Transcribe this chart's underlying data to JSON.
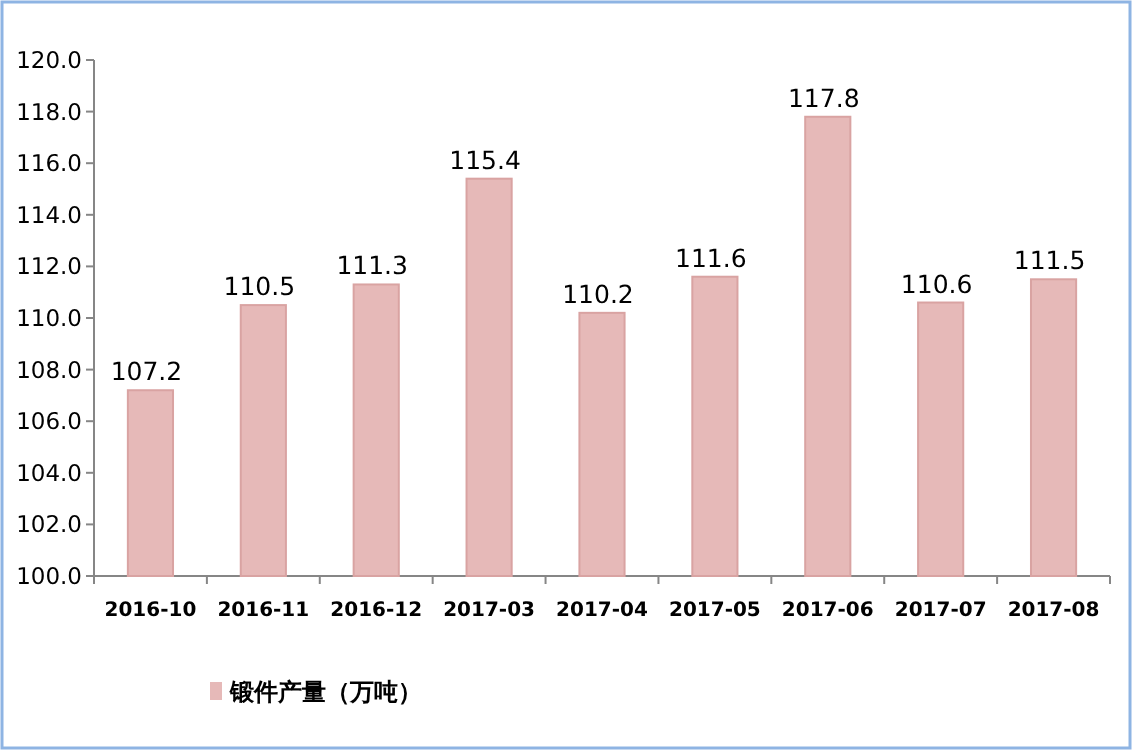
{
  "chart_data": {
    "type": "bar",
    "categories": [
      "2016-10",
      "2016-11",
      "2016-12",
      "2017-03",
      "2017-04",
      "2017-05",
      "2017-06",
      "2017-07",
      "2017-08"
    ],
    "series": [
      {
        "name": "锻件产量（万吨）",
        "color": "#e6b9b8",
        "values": [
          107.2,
          110.5,
          111.3,
          115.4,
          110.2,
          111.6,
          117.8,
          110.6,
          111.5
        ]
      }
    ],
    "ylim": [
      100,
      120
    ],
    "yticks": [
      {
        "value": 100,
        "label": "100.0"
      },
      {
        "value": 102,
        "label": "102.0"
      },
      {
        "value": 104,
        "label": "104.0"
      },
      {
        "value": 106,
        "label": "106.0"
      },
      {
        "value": 108,
        "label": "108.0"
      },
      {
        "value": 110,
        "label": "110.0"
      },
      {
        "value": 112,
        "label": "112.0"
      },
      {
        "value": 114,
        "label": "114.0"
      },
      {
        "value": 116,
        "label": "116.0"
      },
      {
        "value": 118,
        "label": "118.0"
      },
      {
        "value": 120,
        "label": "120.0"
      }
    ],
    "data_labels": true,
    "grid": false,
    "legend": "bottom left"
  }
}
